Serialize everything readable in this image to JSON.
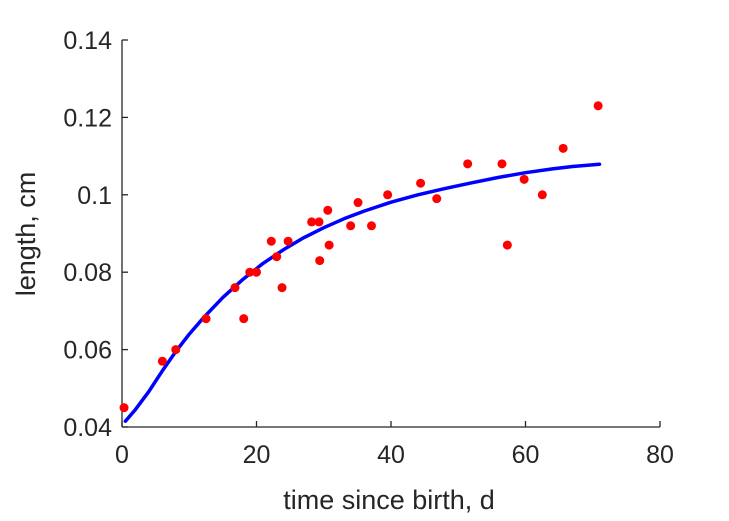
{
  "chart_data": {
    "type": "scatter",
    "title": "",
    "xlabel": "time since birth, d",
    "ylabel": "length, cm",
    "xlim": [
      0,
      80
    ],
    "ylim": [
      0.04,
      0.14
    ],
    "xticks": [
      0,
      20,
      40,
      60,
      80
    ],
    "xtick_labels": [
      "0",
      "20",
      "40",
      "60",
      "80"
    ],
    "yticks": [
      0.04,
      0.06,
      0.08,
      0.1,
      0.12,
      0.14
    ],
    "ytick_labels": [
      "0.04",
      "0.06",
      "0.08",
      "0.1",
      "0.12",
      "0.14"
    ],
    "grid": false,
    "legend": false,
    "colors": {
      "points": "#ff0000",
      "curve": "#0000ff",
      "axes": "#262626"
    },
    "series": [
      {
        "type": "scatter",
        "points": [
          [
            0.3,
            0.045
          ],
          [
            6,
            0.057
          ],
          [
            8,
            0.06
          ],
          [
            12.5,
            0.068
          ],
          [
            16.8,
            0.076
          ],
          [
            18.1,
            0.068
          ],
          [
            19,
            0.08
          ],
          [
            20,
            0.08
          ],
          [
            22.2,
            0.088
          ],
          [
            23,
            0.084
          ],
          [
            23.8,
            0.076
          ],
          [
            24.7,
            0.088
          ],
          [
            28.2,
            0.093
          ],
          [
            29.3,
            0.093
          ],
          [
            29.4,
            0.083
          ],
          [
            30.6,
            0.096
          ],
          [
            30.8,
            0.087
          ],
          [
            34,
            0.092
          ],
          [
            35.1,
            0.098
          ],
          [
            37.1,
            0.092
          ],
          [
            39.5,
            0.1
          ],
          [
            44.4,
            0.103
          ],
          [
            46.8,
            0.099
          ],
          [
            51.4,
            0.108
          ],
          [
            56.5,
            0.108
          ],
          [
            57.3,
            0.087
          ],
          [
            59.8,
            0.104
          ],
          [
            62.5,
            0.1
          ],
          [
            65.6,
            0.112
          ],
          [
            70.8,
            0.123
          ]
        ]
      },
      {
        "type": "line",
        "points": [
          [
            0.5,
            0.0415
          ],
          [
            2,
            0.0445
          ],
          [
            4,
            0.0492
          ],
          [
            6,
            0.0545
          ],
          [
            8,
            0.0595
          ],
          [
            10,
            0.064
          ],
          [
            12,
            0.068
          ],
          [
            15,
            0.0735
          ],
          [
            18,
            0.0782
          ],
          [
            21,
            0.0823
          ],
          [
            24,
            0.0858
          ],
          [
            27,
            0.0889
          ],
          [
            30,
            0.0915
          ],
          [
            33,
            0.0938
          ],
          [
            36,
            0.0958
          ],
          [
            40,
            0.0981
          ],
          [
            44,
            0.1
          ],
          [
            48,
            0.1016
          ],
          [
            52,
            0.1031
          ],
          [
            56,
            0.1045
          ],
          [
            60,
            0.1057
          ],
          [
            64,
            0.1067
          ],
          [
            67,
            0.1073
          ],
          [
            71,
            0.1079
          ]
        ]
      }
    ]
  }
}
